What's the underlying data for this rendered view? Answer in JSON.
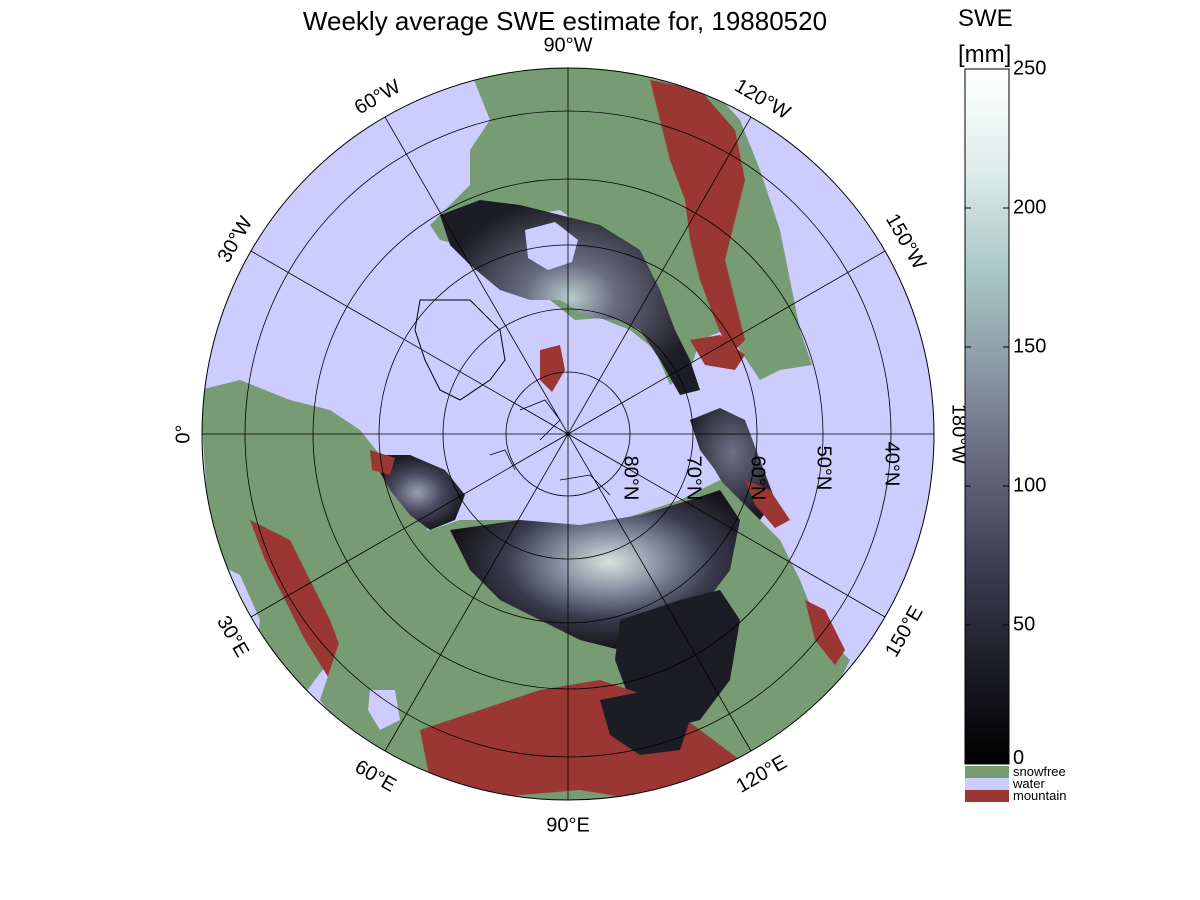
{
  "title": "Weekly average SWE estimate for, 19880520",
  "colorbar": {
    "title_line1": "SWE",
    "title_line2": "[mm]",
    "min": 0,
    "max": 250,
    "ticks": [
      {
        "value": 0,
        "label": "0"
      },
      {
        "value": 50,
        "label": "50"
      },
      {
        "value": 100,
        "label": "100"
      },
      {
        "value": 150,
        "label": "150"
      },
      {
        "value": 200,
        "label": "200"
      },
      {
        "value": 250,
        "label": "250"
      }
    ],
    "gradient_colors": [
      "#000000",
      "#1c1c26",
      "#3e3e56",
      "#66667e",
      "#8a9aa6",
      "#a9c7c4",
      "#dfeeeb",
      "#ffffff"
    ],
    "categories": [
      {
        "label": "snowfree",
        "color": "#779b73"
      },
      {
        "label": "water",
        "color": "#ccccff"
      },
      {
        "label": "mountain",
        "color": "#9a3634"
      }
    ]
  },
  "projection": "north polar stereographic",
  "colors": {
    "water": "#ccccff",
    "land_snowfree": "#779b73",
    "mountain": "#9a3634",
    "snow_dark": "#1c1c24",
    "snow_bright": "#b8cdcc",
    "grid": "#000000"
  },
  "graticule": {
    "latitudes": [
      {
        "value": 80,
        "label": "80°N"
      },
      {
        "value": 70,
        "label": "70°N"
      },
      {
        "value": 60,
        "label": "60°N"
      },
      {
        "value": 50,
        "label": "50°N"
      },
      {
        "value": 40,
        "label": "40°N"
      }
    ],
    "longitudes": [
      {
        "label": "0°"
      },
      {
        "label": "30°E"
      },
      {
        "label": "60°E"
      },
      {
        "label": "90°E"
      },
      {
        "label": "120°E"
      },
      {
        "label": "150°E"
      },
      {
        "label": "180°W"
      },
      {
        "label": "150°W"
      },
      {
        "label": "120°W"
      },
      {
        "label": "90°W"
      },
      {
        "label": "60°W"
      },
      {
        "label": "30°W"
      }
    ]
  }
}
